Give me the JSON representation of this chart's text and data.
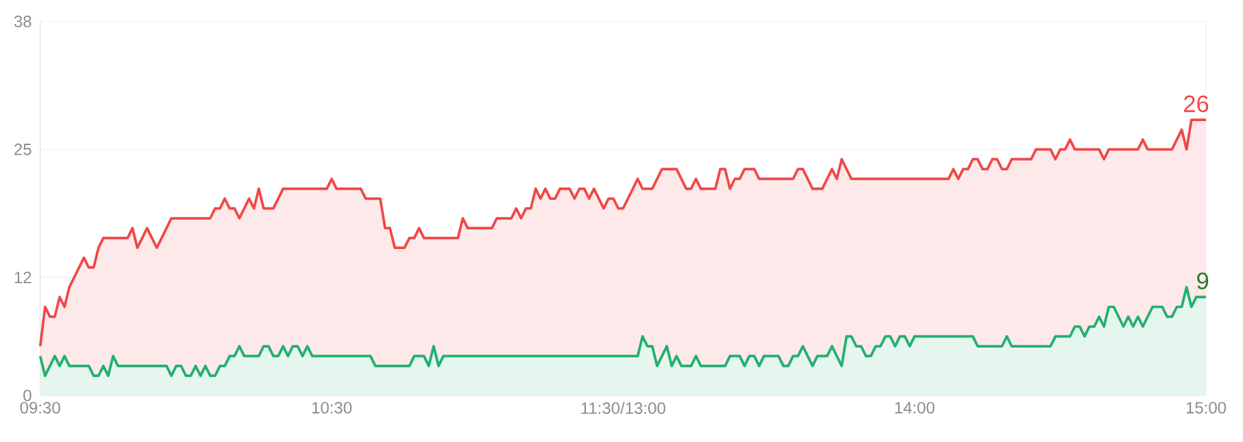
{
  "chart_data": {
    "type": "area",
    "ylim": [
      0,
      38
    ],
    "yticks": [
      0,
      12,
      25,
      38
    ],
    "grid": "y",
    "annotations": [
      "26",
      "9"
    ],
    "categories": [
      "09:30",
      null,
      null,
      null,
      null,
      null,
      null,
      null,
      null,
      null,
      null,
      null,
      null,
      null,
      null,
      null,
      null,
      null,
      null,
      null,
      null,
      null,
      null,
      null,
      null,
      null,
      null,
      null,
      null,
      null,
      null,
      null,
      null,
      null,
      null,
      null,
      null,
      null,
      null,
      null,
      null,
      null,
      null,
      null,
      null,
      null,
      null,
      null,
      null,
      null,
      null,
      null,
      null,
      null,
      null,
      null,
      null,
      null,
      null,
      null,
      "10:30",
      null,
      null,
      null,
      null,
      null,
      null,
      null,
      null,
      null,
      null,
      null,
      null,
      null,
      null,
      null,
      null,
      null,
      null,
      null,
      null,
      null,
      null,
      null,
      null,
      null,
      null,
      null,
      null,
      null,
      null,
      null,
      null,
      null,
      null,
      null,
      null,
      null,
      null,
      null,
      null,
      null,
      null,
      null,
      null,
      null,
      null,
      null,
      null,
      null,
      null,
      null,
      null,
      null,
      null,
      null,
      null,
      null,
      null,
      null,
      "11:30/13:00",
      null,
      null,
      null,
      null,
      null,
      null,
      null,
      null,
      null,
      null,
      null,
      null,
      null,
      null,
      null,
      null,
      null,
      null,
      null,
      null,
      null,
      null,
      null,
      null,
      null,
      null,
      null,
      null,
      null,
      null,
      null,
      null,
      null,
      null,
      null,
      null,
      null,
      null,
      null,
      null,
      null,
      null,
      null,
      null,
      null,
      null,
      null,
      null,
      null,
      null,
      null,
      null,
      null,
      null,
      null,
      null,
      null,
      null,
      null,
      "14:00",
      null,
      null,
      null,
      null,
      null,
      null,
      null,
      null,
      null,
      null,
      null,
      null,
      null,
      null,
      null,
      null,
      null,
      null,
      null,
      null,
      null,
      null,
      null,
      null,
      null,
      null,
      null,
      null,
      null,
      null,
      null,
      null,
      null,
      null,
      null,
      null,
      null,
      null,
      null,
      null,
      null,
      null,
      null,
      null,
      null,
      null,
      null,
      null,
      null,
      null,
      null,
      null,
      null,
      null,
      null,
      null,
      null,
      null,
      null,
      "15:00"
    ],
    "series": [
      {
        "color": "#f04848",
        "values": [
          5,
          9,
          8,
          8,
          10,
          9,
          11,
          12,
          13,
          14,
          13,
          13,
          15,
          16,
          16,
          16,
          16,
          16,
          16,
          17,
          15,
          16,
          17,
          16,
          15,
          16,
          17,
          18,
          18,
          18,
          18,
          18,
          18,
          18,
          18,
          18,
          19,
          19,
          20,
          19,
          19,
          18,
          19,
          20,
          19,
          21,
          19,
          19,
          19,
          20,
          21,
          21,
          21,
          21,
          21,
          21,
          21,
          21,
          21,
          21,
          22,
          21,
          21,
          21,
          21,
          21,
          21,
          20,
          20,
          20,
          20,
          17,
          17,
          15,
          15,
          15,
          16,
          16,
          17,
          16,
          16,
          16,
          16,
          16,
          16,
          16,
          16,
          18,
          17,
          17,
          17,
          17,
          17,
          17,
          18,
          18,
          18,
          18,
          19,
          18,
          19,
          19,
          21,
          20,
          21,
          20,
          20,
          21,
          21,
          21,
          20,
          21,
          21,
          20,
          21,
          20,
          19,
          20,
          20,
          19,
          19,
          20,
          21,
          22,
          21,
          21,
          21,
          22,
          23,
          23,
          23,
          23,
          22,
          21,
          21,
          22,
          21,
          21,
          21,
          21,
          23,
          23,
          21,
          22,
          22,
          23,
          23,
          23,
          22,
          22,
          22,
          22,
          22,
          22,
          22,
          22,
          23,
          23,
          22,
          21,
          21,
          21,
          22,
          23,
          22,
          24,
          23,
          22,
          22,
          22,
          22,
          22,
          22,
          22,
          22,
          22,
          22,
          22,
          22,
          22,
          22,
          22,
          22,
          22,
          22,
          22,
          22,
          22,
          23,
          22,
          23,
          23,
          24,
          24,
          23,
          23,
          24,
          24,
          23,
          23,
          24,
          24,
          24,
          24,
          24,
          25,
          25,
          25,
          25,
          24,
          25,
          25,
          26,
          25,
          25,
          25,
          25,
          25,
          25,
          24,
          25,
          25,
          25,
          25,
          25,
          25,
          25,
          26,
          25,
          25,
          25,
          25,
          25,
          25,
          26,
          27,
          25,
          28,
          28,
          28,
          28
        ]
      },
      {
        "color": "#20b070",
        "values": [
          4,
          2,
          3,
          4,
          3,
          4,
          3,
          3,
          3,
          3,
          3,
          2,
          2,
          3,
          2,
          4,
          3,
          3,
          3,
          3,
          3,
          3,
          3,
          3,
          3,
          3,
          3,
          2,
          3,
          3,
          2,
          2,
          3,
          2,
          3,
          2,
          2,
          3,
          3,
          4,
          4,
          5,
          4,
          4,
          4,
          4,
          5,
          5,
          4,
          4,
          5,
          4,
          5,
          5,
          4,
          5,
          4,
          4,
          4,
          4,
          4,
          4,
          4,
          4,
          4,
          4,
          4,
          4,
          4,
          3,
          3,
          3,
          3,
          3,
          3,
          3,
          3,
          4,
          4,
          4,
          3,
          5,
          3,
          4,
          4,
          4,
          4,
          4,
          4,
          4,
          4,
          4,
          4,
          4,
          4,
          4,
          4,
          4,
          4,
          4,
          4,
          4,
          4,
          4,
          4,
          4,
          4,
          4,
          4,
          4,
          4,
          4,
          4,
          4,
          4,
          4,
          4,
          4,
          4,
          4,
          4,
          4,
          4,
          4,
          6,
          5,
          5,
          3,
          4,
          5,
          3,
          4,
          3,
          3,
          3,
          4,
          3,
          3,
          3,
          3,
          3,
          3,
          4,
          4,
          4,
          3,
          4,
          4,
          3,
          4,
          4,
          4,
          4,
          3,
          3,
          4,
          4,
          5,
          4,
          3,
          4,
          4,
          4,
          5,
          4,
          3,
          6,
          6,
          5,
          5,
          4,
          4,
          5,
          5,
          6,
          6,
          5,
          6,
          6,
          5,
          6,
          6,
          6,
          6,
          6,
          6,
          6,
          6,
          6,
          6,
          6,
          6,
          6,
          5,
          5,
          5,
          5,
          5,
          5,
          6,
          5,
          5,
          5,
          5,
          5,
          5,
          5,
          5,
          5,
          6,
          6,
          6,
          6,
          7,
          7,
          6,
          7,
          7,
          8,
          7,
          9,
          9,
          8,
          7,
          8,
          7,
          8,
          7,
          8,
          9,
          9,
          9,
          8,
          8,
          9,
          9,
          11,
          9,
          10,
          10,
          10
        ]
      }
    ]
  }
}
